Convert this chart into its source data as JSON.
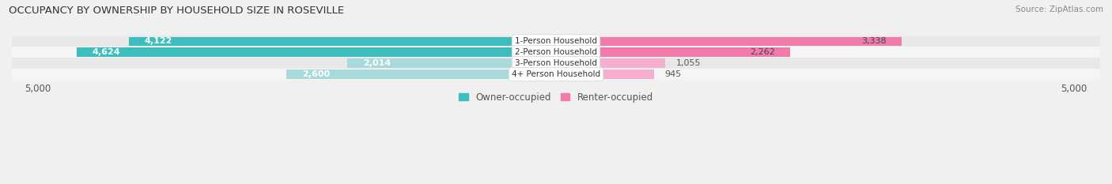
{
  "title": "OCCUPANCY BY OWNERSHIP BY HOUSEHOLD SIZE IN ROSEVILLE",
  "source": "Source: ZipAtlas.com",
  "categories": [
    "1-Person Household",
    "2-Person Household",
    "3-Person Household",
    "4+ Person Household"
  ],
  "owner_values": [
    4122,
    4624,
    2014,
    2600
  ],
  "renter_values": [
    3338,
    2262,
    1055,
    945
  ],
  "owner_colors": [
    "#3DBDBD",
    "#3DBDBD",
    "#A8DADC",
    "#A8DADC"
  ],
  "renter_colors": [
    "#F07BAA",
    "#F07BAA",
    "#F5AECF",
    "#F5AECF"
  ],
  "max_val": 5000,
  "bar_height": 0.82,
  "bg_color": "#f0f0f0",
  "row_bg_even": "#e8e8e8",
  "row_bg_odd": "#f5f5f5",
  "title_fontsize": 9.5,
  "label_fontsize": 8.0,
  "tick_fontsize": 8.5,
  "legend_fontsize": 8.5,
  "source_fontsize": 7.5
}
